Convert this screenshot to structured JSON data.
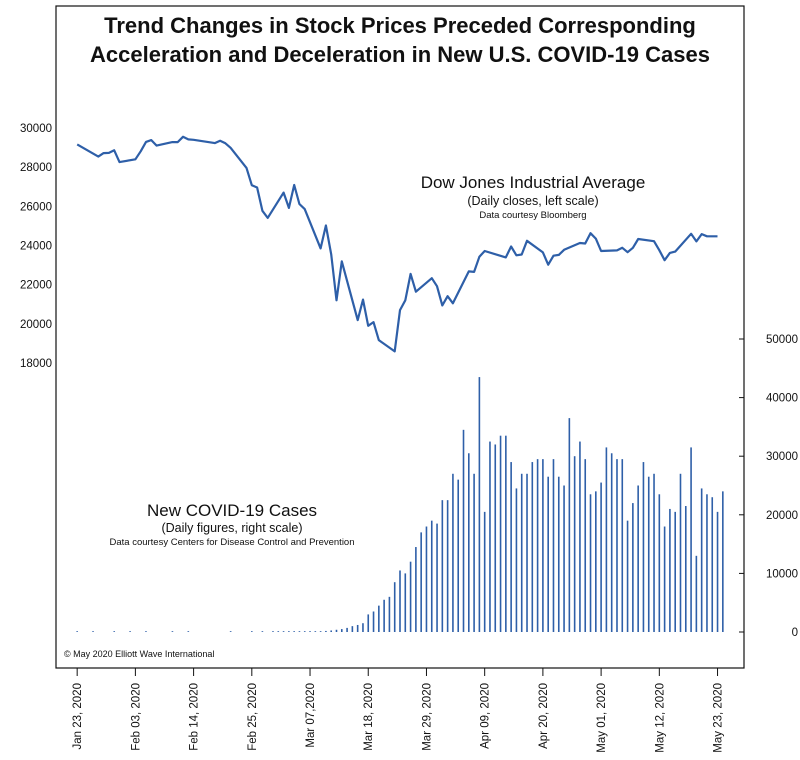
{
  "title_line1": "Trend Changes in Stock Prices Preceded Corresponding",
  "title_line2": "Acceleration and Deceleration in New U.S. COVID-19 Cases",
  "copyright": "© May 2020 Elliott Wave International",
  "dow_label": {
    "title": "Dow Jones Industrial Average",
    "subtitle": "(Daily closes, left scale)",
    "source": "Data courtesy Bloomberg"
  },
  "covid_label": {
    "title": "New COVID-19 Cases",
    "subtitle": "(Daily figures, right scale)",
    "source": "Data courtesy Centers for Disease Control and Prevention"
  },
  "chart_data": [
    {
      "type": "line",
      "series": [
        {
          "name": "Dow Jones Industrial Average",
          "color": "#2e5fa8",
          "points": [
            [
              "2020-01-23",
              29160
            ],
            [
              "2020-01-27",
              28540
            ],
            [
              "2020-01-28",
              28720
            ],
            [
              "2020-01-29",
              28730
            ],
            [
              "2020-01-30",
              28860
            ],
            [
              "2020-01-31",
              28260
            ],
            [
              "2020-02-03",
              28400
            ],
            [
              "2020-02-04",
              28810
            ],
            [
              "2020-02-05",
              29290
            ],
            [
              "2020-02-06",
              29380
            ],
            [
              "2020-02-07",
              29100
            ],
            [
              "2020-02-10",
              29280
            ],
            [
              "2020-02-11",
              29280
            ],
            [
              "2020-02-12",
              29550
            ],
            [
              "2020-02-13",
              29420
            ],
            [
              "2020-02-14",
              29400
            ],
            [
              "2020-02-18",
              29230
            ],
            [
              "2020-02-19",
              29350
            ],
            [
              "2020-02-20",
              29220
            ],
            [
              "2020-02-21",
              28990
            ],
            [
              "2020-02-24",
              27960
            ],
            [
              "2020-02-25",
              27080
            ],
            [
              "2020-02-26",
              26960
            ],
            [
              "2020-02-27",
              25770
            ],
            [
              "2020-02-28",
              25410
            ],
            [
              "2020-03-02",
              26700
            ],
            [
              "2020-03-03",
              25920
            ],
            [
              "2020-03-04",
              27090
            ],
            [
              "2020-03-05",
              26120
            ],
            [
              "2020-03-06",
              25860
            ],
            [
              "2020-03-09",
              23850
            ],
            [
              "2020-03-10",
              25020
            ],
            [
              "2020-03-11",
              23550
            ],
            [
              "2020-03-12",
              21200
            ],
            [
              "2020-03-13",
              23190
            ],
            [
              "2020-03-16",
              20190
            ],
            [
              "2020-03-17",
              21240
            ],
            [
              "2020-03-18",
              19900
            ],
            [
              "2020-03-19",
              20090
            ],
            [
              "2020-03-20",
              19170
            ],
            [
              "2020-03-23",
              18590
            ],
            [
              "2020-03-24",
              20700
            ],
            [
              "2020-03-25",
              21200
            ],
            [
              "2020-03-26",
              22550
            ],
            [
              "2020-03-27",
              21640
            ],
            [
              "2020-03-30",
              22330
            ],
            [
              "2020-03-31",
              21920
            ],
            [
              "2020-04-01",
              20940
            ],
            [
              "2020-04-02",
              21410
            ],
            [
              "2020-04-03",
              21050
            ],
            [
              "2020-04-06",
              22680
            ],
            [
              "2020-04-07",
              22650
            ],
            [
              "2020-04-08",
              23430
            ],
            [
              "2020-04-09",
              23720
            ],
            [
              "2020-04-13",
              23390
            ],
            [
              "2020-04-14",
              23950
            ],
            [
              "2020-04-15",
              23500
            ],
            [
              "2020-04-16",
              23540
            ],
            [
              "2020-04-17",
              24240
            ],
            [
              "2020-04-20",
              23650
            ],
            [
              "2020-04-21",
              23020
            ],
            [
              "2020-04-22",
              23480
            ],
            [
              "2020-04-23",
              23520
            ],
            [
              "2020-04-24",
              23780
            ],
            [
              "2020-04-27",
              24130
            ],
            [
              "2020-04-28",
              24100
            ],
            [
              "2020-04-29",
              24630
            ],
            [
              "2020-04-30",
              24350
            ],
            [
              "2020-05-01",
              23720
            ],
            [
              "2020-05-04",
              23750
            ],
            [
              "2020-05-05",
              23880
            ],
            [
              "2020-05-06",
              23660
            ],
            [
              "2020-05-07",
              23880
            ],
            [
              "2020-05-08",
              24330
            ],
            [
              "2020-05-11",
              24220
            ],
            [
              "2020-05-12",
              23760
            ],
            [
              "2020-05-13",
              23250
            ],
            [
              "2020-05-14",
              23620
            ],
            [
              "2020-05-15",
              23690
            ],
            [
              "2020-05-18",
              24600
            ],
            [
              "2020-05-19",
              24210
            ],
            [
              "2020-05-20",
              24580
            ],
            [
              "2020-05-21",
              24470
            ],
            [
              "2020-05-22",
              24470
            ],
            [
              "2020-05-23",
              24470
            ]
          ]
        }
      ],
      "y_axis": "left",
      "yticks": [
        18000,
        20000,
        22000,
        24000,
        26000,
        28000,
        30000
      ]
    },
    {
      "type": "bar",
      "series": [
        {
          "name": "New COVID-19 Cases",
          "color": "#2e5fa8",
          "points": [
            [
              "2020-01-23",
              0
            ],
            [
              "2020-01-26",
              1
            ],
            [
              "2020-01-30",
              1
            ],
            [
              "2020-02-02",
              2
            ],
            [
              "2020-02-05",
              1
            ],
            [
              "2020-02-10",
              1
            ],
            [
              "2020-02-13",
              2
            ],
            [
              "2020-02-21",
              1
            ],
            [
              "2020-02-25",
              1
            ],
            [
              "2020-02-27",
              3
            ],
            [
              "2020-02-29",
              5
            ],
            [
              "2020-03-01",
              10
            ],
            [
              "2020-03-02",
              15
            ],
            [
              "2020-03-03",
              20
            ],
            [
              "2020-03-04",
              28
            ],
            [
              "2020-03-05",
              45
            ],
            [
              "2020-03-06",
              80
            ],
            [
              "2020-03-07",
              95
            ],
            [
              "2020-03-08",
              110
            ],
            [
              "2020-03-09",
              130
            ],
            [
              "2020-03-10",
              180
            ],
            [
              "2020-03-11",
              260
            ],
            [
              "2020-03-12",
              380
            ],
            [
              "2020-03-13",
              500
            ],
            [
              "2020-03-14",
              700
            ],
            [
              "2020-03-15",
              1000
            ],
            [
              "2020-03-16",
              1200
            ],
            [
              "2020-03-17",
              1500
            ],
            [
              "2020-03-18",
              3000
            ],
            [
              "2020-03-19",
              3500
            ],
            [
              "2020-03-20",
              4500
            ],
            [
              "2020-03-21",
              5500
            ],
            [
              "2020-03-22",
              6000
            ],
            [
              "2020-03-23",
              8500
            ],
            [
              "2020-03-24",
              10500
            ],
            [
              "2020-03-25",
              10000
            ],
            [
              "2020-03-26",
              12000
            ],
            [
              "2020-03-27",
              14500
            ],
            [
              "2020-03-28",
              17000
            ],
            [
              "2020-03-29",
              18000
            ],
            [
              "2020-03-30",
              19000
            ],
            [
              "2020-03-31",
              18500
            ],
            [
              "2020-04-01",
              22500
            ],
            [
              "2020-04-02",
              22500
            ],
            [
              "2020-04-03",
              27000
            ],
            [
              "2020-04-04",
              26000
            ],
            [
              "2020-04-05",
              34500
            ],
            [
              "2020-04-06",
              30500
            ],
            [
              "2020-04-07",
              27000
            ],
            [
              "2020-04-08",
              43500
            ],
            [
              "2020-04-09",
              20500
            ],
            [
              "2020-04-10",
              32500
            ],
            [
              "2020-04-11",
              32000
            ],
            [
              "2020-04-12",
              33500
            ],
            [
              "2020-04-13",
              33500
            ],
            [
              "2020-04-14",
              29000
            ],
            [
              "2020-04-15",
              24500
            ],
            [
              "2020-04-16",
              27000
            ],
            [
              "2020-04-17",
              27000
            ],
            [
              "2020-04-18",
              29000
            ],
            [
              "2020-04-19",
              29500
            ],
            [
              "2020-04-20",
              29500
            ],
            [
              "2020-04-21",
              26500
            ],
            [
              "2020-04-22",
              29500
            ],
            [
              "2020-04-23",
              26500
            ],
            [
              "2020-04-24",
              25000
            ],
            [
              "2020-04-25",
              36500
            ],
            [
              "2020-04-26",
              30000
            ],
            [
              "2020-04-27",
              32500
            ],
            [
              "2020-04-28",
              29500
            ],
            [
              "2020-04-29",
              23500
            ],
            [
              "2020-04-30",
              24000
            ],
            [
              "2020-05-01",
              25500
            ],
            [
              "2020-05-02",
              31500
            ],
            [
              "2020-05-03",
              30500
            ],
            [
              "2020-05-04",
              29500
            ],
            [
              "2020-05-05",
              29500
            ],
            [
              "2020-05-06",
              19000
            ],
            [
              "2020-05-07",
              22000
            ],
            [
              "2020-05-08",
              25000
            ],
            [
              "2020-05-09",
              29000
            ],
            [
              "2020-05-10",
              26500
            ],
            [
              "2020-05-11",
              27000
            ],
            [
              "2020-05-12",
              23500
            ],
            [
              "2020-05-13",
              18000
            ],
            [
              "2020-05-14",
              21000
            ],
            [
              "2020-05-15",
              20500
            ],
            [
              "2020-05-16",
              27000
            ],
            [
              "2020-05-17",
              21500
            ],
            [
              "2020-05-18",
              31500
            ],
            [
              "2020-05-19",
              13000
            ],
            [
              "2020-05-20",
              24500
            ],
            [
              "2020-05-21",
              23500
            ],
            [
              "2020-05-22",
              23000
            ],
            [
              "2020-05-23",
              20500
            ],
            [
              "2020-05-24",
              24000
            ]
          ]
        }
      ],
      "y_axis": "right",
      "yticks": [
        0,
        10000,
        20000,
        30000,
        40000,
        50000
      ]
    }
  ],
  "x_axis": {
    "range": [
      "2020-01-19",
      "2020-05-28"
    ],
    "ticks": [
      {
        "date": "2020-01-23",
        "label": "Jan 23, 2020"
      },
      {
        "date": "2020-02-03",
        "label": "Feb 03, 2020"
      },
      {
        "date": "2020-02-14",
        "label": "Feb 14, 2020"
      },
      {
        "date": "2020-02-25",
        "label": "Feb 25, 2020"
      },
      {
        "date": "2020-03-07",
        "label": "Mar 07,2020"
      },
      {
        "date": "2020-03-18",
        "label": "Mar 18, 2020"
      },
      {
        "date": "2020-03-29",
        "label": "Mar 29, 2020"
      },
      {
        "date": "2020-04-09",
        "label": "Apr 09, 2020"
      },
      {
        "date": "2020-04-20",
        "label": "Apr 20, 2020"
      },
      {
        "date": "2020-05-01",
        "label": "May 01, 2020"
      },
      {
        "date": "2020-05-12",
        "label": "May 12, 2020"
      },
      {
        "date": "2020-05-23",
        "label": "May 23, 2020"
      }
    ]
  }
}
